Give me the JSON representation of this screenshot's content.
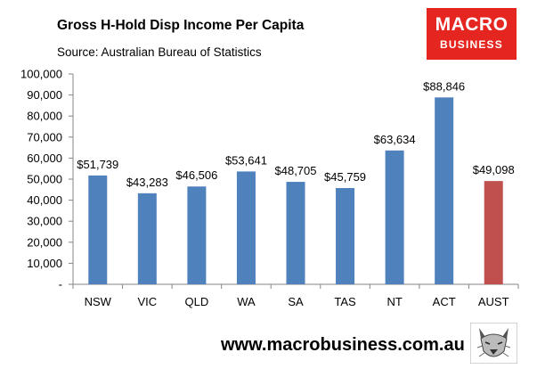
{
  "chart_data": {
    "type": "bar",
    "title": "Gross H-Hold Disp Income Per Capita",
    "subtitle": "Source: Australian Bureau of Statistics",
    "categories": [
      "NSW",
      "VIC",
      "QLD",
      "WA",
      "SA",
      "TAS",
      "NT",
      "ACT",
      "AUST"
    ],
    "values": [
      51739,
      43283,
      46506,
      53641,
      48705,
      45759,
      63634,
      88846,
      49098
    ],
    "data_labels": [
      "$51,739",
      "$43,283",
      "$46,506",
      "$53,641",
      "$48,705",
      "$45,759",
      "$63,634",
      "$88,846",
      "$49,098"
    ],
    "y_ticks": [
      0,
      10000,
      20000,
      30000,
      40000,
      50000,
      60000,
      70000,
      80000,
      90000,
      100000
    ],
    "y_tick_labels": [
      "-",
      "10,000",
      "20,000",
      "30,000",
      "40,000",
      "50,000",
      "60,000",
      "70,000",
      "80,000",
      "90,000",
      "100,000"
    ],
    "ylim": [
      0,
      100000
    ],
    "xlabel": "",
    "ylabel": "",
    "grid": false,
    "legend": "none",
    "colors": {
      "bar": "#4f81bd",
      "highlight": "#c0504d",
      "highlight_category": "AUST",
      "axis": "#868686"
    }
  },
  "logo": {
    "line1": "MACRO",
    "line2": "BUSINESS",
    "color": "#e52620"
  },
  "footer": {
    "url": "www.macrobusiness.com.au",
    "mascot_icon": "wolf-icon"
  }
}
